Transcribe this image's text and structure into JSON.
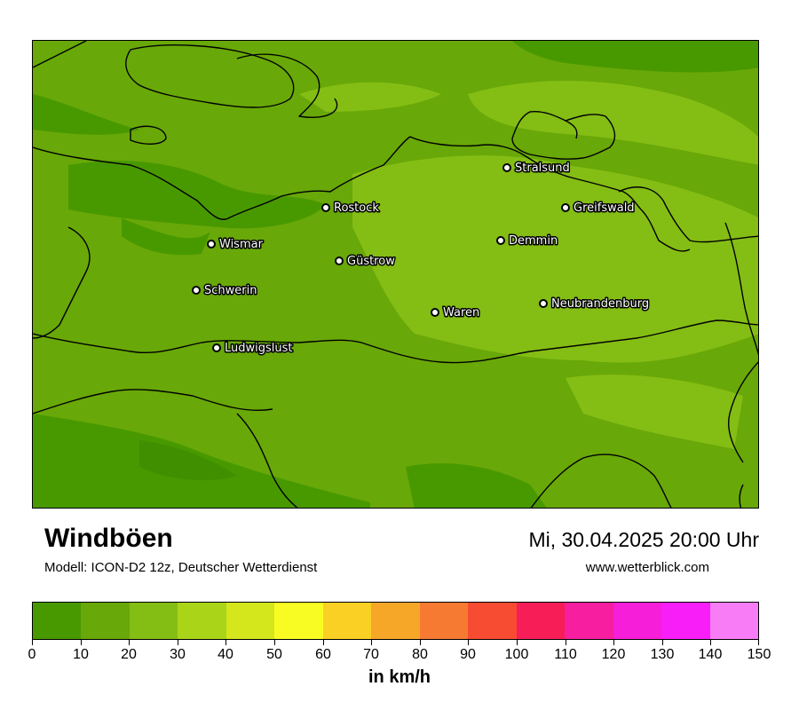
{
  "title": "Windböen",
  "subtitle": "Modell: ICON-D2 12z, Deutscher Wetterdienst",
  "datetime": "Mi, 30.04.2025 20:00 Uhr",
  "source": "www.wetterblick.com",
  "colorbar": {
    "unit": "in km/h",
    "ticks": [
      "0",
      "10",
      "20",
      "30",
      "40",
      "50",
      "60",
      "70",
      "80",
      "90",
      "100",
      "110",
      "120",
      "130",
      "140",
      "150"
    ],
    "colors": [
      "#489900",
      "#68a808",
      "#84bd14",
      "#aad418",
      "#d4e61c",
      "#f9fc23",
      "#f9d023",
      "#f7a728",
      "#f77a32",
      "#f74b32",
      "#f71e58",
      "#f71ea0",
      "#f61ed8",
      "#f81ef8",
      "#f87cf5"
    ]
  },
  "cities": [
    {
      "name": "Stralsund",
      "label": "Stralsund"
    },
    {
      "name": "Rostock",
      "label": "Rostock"
    },
    {
      "name": "Greifswald",
      "label": "Greifswald"
    },
    {
      "name": "Wismar",
      "label": "Wismar"
    },
    {
      "name": "Demmin",
      "label": "Demmin"
    },
    {
      "name": "Guestrow",
      "label": "Güstrow"
    },
    {
      "name": "Schwerin",
      "label": "Schwerin"
    },
    {
      "name": "Neubrandenburg",
      "label": "Neubrandenburg"
    },
    {
      "name": "Waren",
      "label": "Waren"
    },
    {
      "name": "Ludwigslust",
      "label": "Ludwigslust"
    }
  ],
  "colors": {
    "base_0_10": "#489900",
    "base_10_20": "#68a808",
    "base_20_30": "#84bd14"
  }
}
